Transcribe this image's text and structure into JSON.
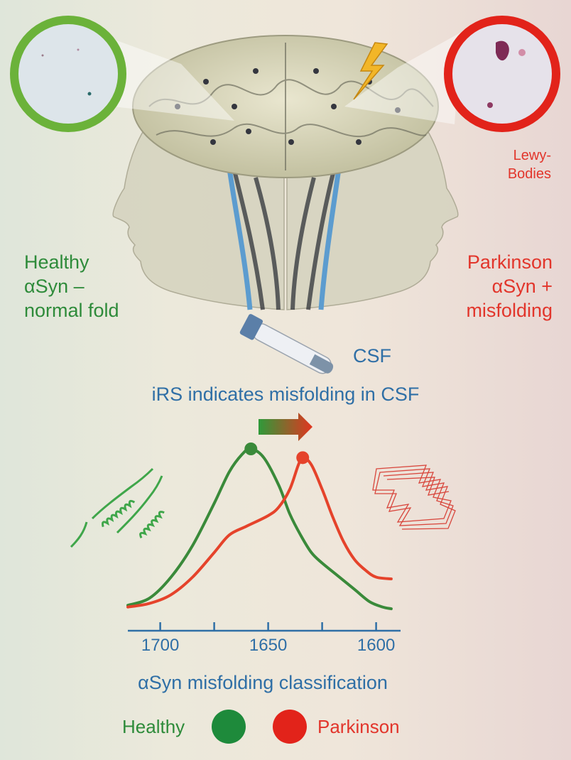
{
  "labels": {
    "healthy": [
      "Healthy",
      "αSyn –",
      "normal fold"
    ],
    "parkinson": [
      "Parkinson",
      "αSyn +",
      "misfolding"
    ],
    "lewy": [
      "Lewy-",
      "Bodies"
    ],
    "csf": "CSF",
    "irs": "iRS indicates misfolding in CSF"
  },
  "chart_data": {
    "type": "line",
    "xlabel": "αSyn misfolding classification",
    "x_ticks": [
      1700,
      1650,
      1600
    ],
    "xlim": [
      1715,
      1590
    ],
    "series": [
      {
        "name": "Healthy",
        "color": "#3a8a3a",
        "peak_x": 1658,
        "points": [
          [
            1715,
            0.04
          ],
          [
            1705,
            0.08
          ],
          [
            1695,
            0.2
          ],
          [
            1685,
            0.38
          ],
          [
            1675,
            0.62
          ],
          [
            1668,
            0.8
          ],
          [
            1662,
            0.9
          ],
          [
            1658,
            0.93
          ],
          [
            1652,
            0.88
          ],
          [
            1645,
            0.72
          ],
          [
            1640,
            0.56
          ],
          [
            1635,
            0.44
          ],
          [
            1630,
            0.34
          ],
          [
            1625,
            0.28
          ],
          [
            1618,
            0.21
          ],
          [
            1610,
            0.13
          ],
          [
            1603,
            0.06
          ],
          [
            1597,
            0.03
          ],
          [
            1593,
            0.02
          ]
        ]
      },
      {
        "name": "Parkinson",
        "color": "#e5432b",
        "peak_x": 1634,
        "points": [
          [
            1715,
            0.03
          ],
          [
            1705,
            0.05
          ],
          [
            1695,
            0.1
          ],
          [
            1685,
            0.2
          ],
          [
            1675,
            0.34
          ],
          [
            1668,
            0.44
          ],
          [
            1660,
            0.49
          ],
          [
            1650,
            0.55
          ],
          [
            1645,
            0.6
          ],
          [
            1640,
            0.7
          ],
          [
            1636,
            0.84
          ],
          [
            1634,
            0.88
          ],
          [
            1630,
            0.84
          ],
          [
            1625,
            0.7
          ],
          [
            1620,
            0.54
          ],
          [
            1615,
            0.4
          ],
          [
            1610,
            0.3
          ],
          [
            1605,
            0.24
          ],
          [
            1600,
            0.2
          ],
          [
            1593,
            0.19
          ]
        ]
      }
    ]
  },
  "legend": [
    {
      "label": "Healthy",
      "color": "#1e8a3b"
    },
    {
      "label": "Parkinson",
      "color": "#e2231a"
    }
  ]
}
